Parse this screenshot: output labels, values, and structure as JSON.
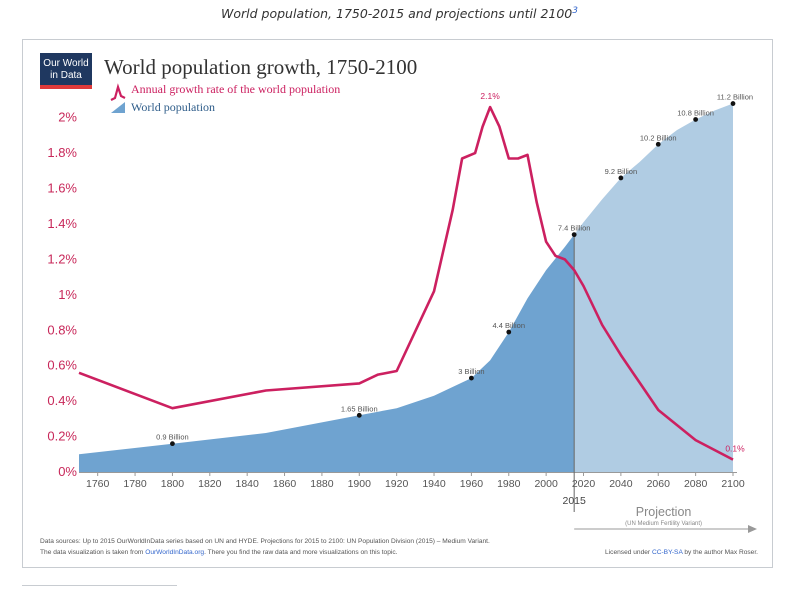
{
  "caption": "World population, 1750-2015 and projections until 2100",
  "caption_ref": "3",
  "logo": {
    "line1": "Our World",
    "line2": "in Data"
  },
  "chart_data": {
    "type": "line",
    "title": "World population growth, 1750-2100",
    "legend": [
      {
        "name": "Annual growth rate of the world population",
        "color": "#cc2060",
        "kind": "line"
      },
      {
        "name": "World population",
        "color": "#6ea4d0",
        "kind": "area"
      }
    ],
    "xlim": [
      1750,
      2100
    ],
    "ylim": [
      0,
      2.1
    ],
    "x_ticks": [
      1760,
      1780,
      1800,
      1820,
      1840,
      1860,
      1880,
      1900,
      1920,
      1940,
      1960,
      1980,
      2000,
      2020,
      2040,
      2060,
      2080,
      2100
    ],
    "y_ticks": [
      "0%",
      "0.2%",
      "0.4%",
      "0.6%",
      "0.8%",
      "1%",
      "1.2%",
      "1.4%",
      "1.6%",
      "1.8%",
      "2%"
    ],
    "highlight_year": "2015",
    "projection_label": "Projection",
    "projection_sub": "(UN Medium Fertility Variant)",
    "growth_series": {
      "name": "Annual growth rate of the world population",
      "x": [
        1750,
        1800,
        1850,
        1900,
        1910,
        1920,
        1940,
        1950,
        1955,
        1962,
        1966,
        1970,
        1975,
        1980,
        1985,
        1990,
        1995,
        2000,
        2005,
        2010,
        2015,
        2020,
        2030,
        2040,
        2060,
        2080,
        2100
      ],
      "y": [
        0.56,
        0.36,
        0.46,
        0.5,
        0.55,
        0.57,
        1.02,
        1.48,
        1.77,
        1.8,
        1.95,
        2.06,
        1.95,
        1.77,
        1.77,
        1.79,
        1.52,
        1.3,
        1.22,
        1.2,
        1.14,
        1.05,
        0.83,
        0.66,
        0.35,
        0.18,
        0.07
      ]
    },
    "population_series": {
      "name": "World population",
      "x": [
        1750,
        1800,
        1850,
        1900,
        1920,
        1940,
        1960,
        1970,
        1980,
        1990,
        2000,
        2010,
        2015,
        2020,
        2030,
        2040,
        2050,
        2060,
        2070,
        2080,
        2090,
        2100
      ],
      "y": [
        0.1,
        0.16,
        0.22,
        0.32,
        0.36,
        0.43,
        0.53,
        0.63,
        0.79,
        0.98,
        1.14,
        1.27,
        1.34,
        1.41,
        1.54,
        1.66,
        1.75,
        1.85,
        1.93,
        1.99,
        2.04,
        2.08
      ]
    },
    "population_labels": [
      {
        "x": 1800,
        "y": 0.16,
        "text": "0.9 Billion"
      },
      {
        "x": 1900,
        "y": 0.32,
        "text": "1.65 Billion"
      },
      {
        "x": 1960,
        "y": 0.53,
        "text": "3 Billion"
      },
      {
        "x": 1980,
        "y": 0.79,
        "text": "4.4 Billion"
      },
      {
        "x": 2015,
        "y": 1.34,
        "text": "7.4 Billion"
      },
      {
        "x": 2040,
        "y": 1.66,
        "text": "9.2 Billion"
      },
      {
        "x": 2060,
        "y": 1.85,
        "text": "10.2 Billion"
      },
      {
        "x": 2080,
        "y": 1.99,
        "text": "10.8 Billion"
      },
      {
        "x": 2100,
        "y": 2.08,
        "text": "11.2 Billion"
      }
    ],
    "growth_labels": [
      {
        "x": 1970,
        "y": 2.06,
        "text": "2.1%"
      },
      {
        "x": 2100,
        "y": 0.07,
        "text": "0.1%"
      }
    ]
  },
  "footer": {
    "sources": "Data sources:  Up to 2015 OurWorldInData series based on UN and HYDE. Projections for 2015 to 2100: UN Population Division (2015) – Medium Variant.",
    "viz_prefix": "The data visualization is taken from ",
    "viz_link": "OurWorldInData.org",
    "viz_suffix": ". There you find the raw data and more visualizations on this topic.",
    "license_prefix": "Licensed under ",
    "license_link": "CC-BY-SA",
    "license_suffix": " by the author Max Roser."
  },
  "colors": {
    "growth": "#cc2060",
    "pop_hist": "#6fa3d0",
    "pop_proj": "#b0cce3",
    "axis_text": "#555555",
    "ytick_text": "#c8285a"
  }
}
